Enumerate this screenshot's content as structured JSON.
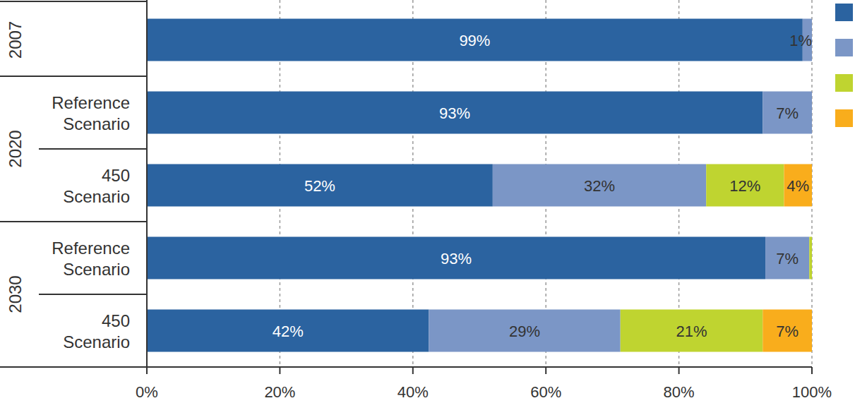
{
  "chart_data": {
    "type": "bar",
    "orientation": "horizontal",
    "stacked": true,
    "data_labels": true,
    "grid": true,
    "legend": "right",
    "categories": [
      null,
      "Reference Scenario",
      "450 Scenario",
      "Reference Scenario",
      "450 Scenario"
    ],
    "category_groups": [
      "2007",
      "2020",
      "2020",
      "2030",
      "2030"
    ],
    "xlim": [
      0,
      100
    ],
    "xticks": [
      {
        "value": 0,
        "label": "0%"
      },
      {
        "value": 20,
        "label": "20%"
      },
      {
        "value": 40,
        "label": "40%"
      },
      {
        "value": 60,
        "label": "60%"
      },
      {
        "value": 80,
        "label": "80%"
      },
      {
        "value": 100,
        "label": "100%"
      }
    ],
    "series": [
      {
        "color": "#2b63a0",
        "values": [
          98.6,
          92.6,
          52.0,
          93.0,
          42.4
        ],
        "value_labels": [
          "99%",
          "93%",
          "52%",
          "93%",
          "42%"
        ]
      },
      {
        "color": "#7b96c6",
        "values": [
          1.4,
          7.4,
          32.1,
          6.6,
          28.8
        ],
        "value_labels": [
          "1%",
          "7%",
          "32%",
          "7%",
          "29%"
        ]
      },
      {
        "color": "#bfd430",
        "values": [
          0,
          0,
          11.7,
          0.4,
          21.4
        ],
        "value_labels": [
          null,
          null,
          "12%",
          null,
          "21%"
        ]
      },
      {
        "color": "#f9ad1c",
        "values": [
          0,
          0,
          4.2,
          0,
          7.4
        ],
        "value_labels": [
          null,
          null,
          "4%",
          null,
          "7%"
        ]
      }
    ]
  }
}
